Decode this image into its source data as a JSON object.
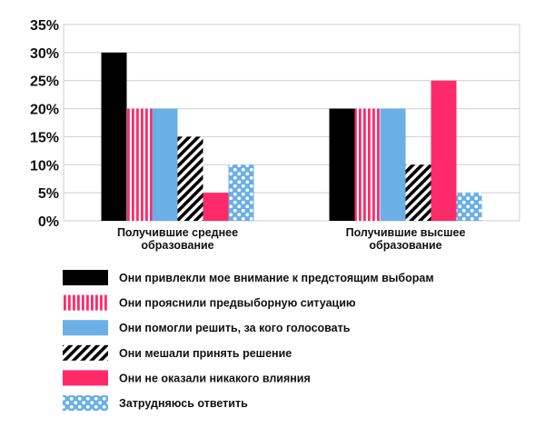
{
  "chart_data": {
    "type": "bar",
    "title": "",
    "xlabel": "",
    "ylabel": "",
    "ylim": [
      0,
      35
    ],
    "yticks": [
      "0%",
      "5%",
      "10%",
      "15%",
      "20%",
      "25%",
      "30%",
      "35%"
    ],
    "categories": [
      [
        "Получившие среднее",
        "образование"
      ],
      [
        "Получившие высшее",
        "образование"
      ]
    ],
    "grid": true,
    "legend_position": "bottom",
    "series": [
      {
        "name": "Они привлекли мое внимание к предстоящим выборам",
        "values": [
          30,
          20
        ],
        "color": "#000000",
        "pattern": "solid"
      },
      {
        "name": "Они прояснили предвыборную ситуацию",
        "values": [
          20,
          20
        ],
        "color": "#ff2a6a",
        "pattern": "vertical-stripes"
      },
      {
        "name": "Они помогли решить, за кого голосовать",
        "values": [
          20,
          20
        ],
        "color": "#6aafe6",
        "pattern": "solid"
      },
      {
        "name": "Они мешали принять решение",
        "values": [
          15,
          10
        ],
        "color": "#000000",
        "pattern": "diagonal-stripes"
      },
      {
        "name": "Они не оказали никакого влияния",
        "values": [
          5,
          25
        ],
        "color": "#ff2a6a",
        "pattern": "solid"
      },
      {
        "name": "Затрудняюсь ответить",
        "values": [
          10,
          5
        ],
        "color": "#6aafe6",
        "pattern": "dots"
      }
    ]
  }
}
